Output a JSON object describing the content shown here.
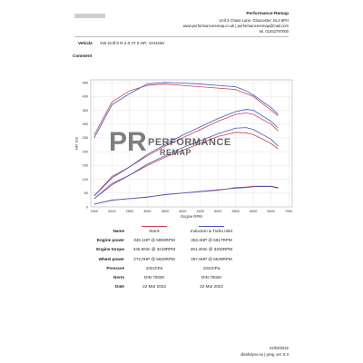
{
  "header": {
    "company": "Performance Remap",
    "address": "Unit 3 Chase Lane, Gloucester, GL4 6PH",
    "web": "www.performanceremap.co.uk | performanceremap@mail.com",
    "phone": "tel. 01452797000"
  },
  "vehicle": {
    "label": "Vehicle",
    "value": "VW Golf 8 R 2.0 AT 0 HP; VAN15H"
  },
  "comment": {
    "label": "Comment"
  },
  "watermark": {
    "initials": "PR",
    "line1": "PERFORMANCE",
    "line2": "REMAP"
  },
  "chart_data": {
    "type": "line",
    "x_label": "Engine RPM",
    "y_label": "HP, Nm",
    "x": [
      1500,
      2000,
      2500,
      3000,
      3500,
      4000,
      4500,
      5000,
      5500,
      5800,
      6000,
      6500,
      6700
    ],
    "xlim": [
      1400,
      7100
    ],
    "xticks": [
      1500,
      2000,
      2500,
      3000,
      3500,
      4000,
      4500,
      5000,
      5500,
      6000,
      6500,
      7000
    ],
    "ylim": [
      0,
      460
    ],
    "yticks": [
      0,
      50,
      100,
      150,
      200,
      250,
      300,
      350,
      400,
      450
    ],
    "grid": true,
    "series": [
      {
        "name": "Stock",
        "color": "#d0404e",
        "curves": [
          {
            "values": [
              260,
              380,
              420,
              440,
              445,
              440,
              435,
              430,
              425,
              410,
              400,
              350,
              330
            ]
          },
          {
            "values": [
              40,
              110,
              145,
              185,
              220,
              250,
              280,
              310,
              335,
              340,
              335,
              300,
              275
            ]
          },
          {
            "values": [
              30,
              85,
              115,
              150,
              180,
              205,
              230,
              255,
              270,
              268,
              262,
              230,
              210
            ]
          },
          {
            "values": [
              10,
              25,
              30,
              35,
              45,
              50,
              55,
              60,
              70,
              72,
              75,
              75,
              70
            ]
          }
        ]
      },
      {
        "name": "Induction & Turbo Inlet",
        "color": "#4a55c8",
        "curves": [
          {
            "values": [
              250,
              370,
              410,
              445,
              451,
              448,
              445,
              440,
              435,
              420,
              405,
              360,
              335
            ]
          },
          {
            "values": [
              40,
              105,
              145,
              190,
              225,
              260,
              290,
              320,
              345,
              353,
              350,
              310,
              285
            ]
          },
          {
            "values": [
              30,
              80,
              115,
              155,
              185,
              215,
              240,
              265,
              285,
              287,
              280,
              245,
              220
            ]
          },
          {
            "values": [
              10,
              24,
              30,
              36,
              44,
              50,
              56,
              62,
              68,
              70,
              73,
              74,
              68
            ]
          }
        ]
      }
    ]
  },
  "table": {
    "header": [
      "Name",
      "Stock",
      "Induction & Turbo Inlet"
    ],
    "rows": [
      [
        "Engine power",
        "340.1HP @ 5800RPM",
        "353.3HP @ 5817RPM"
      ],
      [
        "Engine torque",
        "445.8Nm @ 3219RPM",
        "451.4Nm @ 3332RPM"
      ],
      [
        "Wheel power",
        "272.0HP @ 5620RPM",
        "287.8HP @ 5549RPM"
      ],
      [
        "Pressure",
        "1021hPa",
        "1021hPa"
      ],
      [
        "Norm",
        "DIN 70020",
        "DIN 70020"
      ],
      [
        "Date",
        "22 Mar 2022",
        "22 Mar 2022"
      ]
    ]
  },
  "footer": {
    "date": "22/03/2022",
    "software": "dieshdyno.eu | prog. ver. 6.3"
  }
}
